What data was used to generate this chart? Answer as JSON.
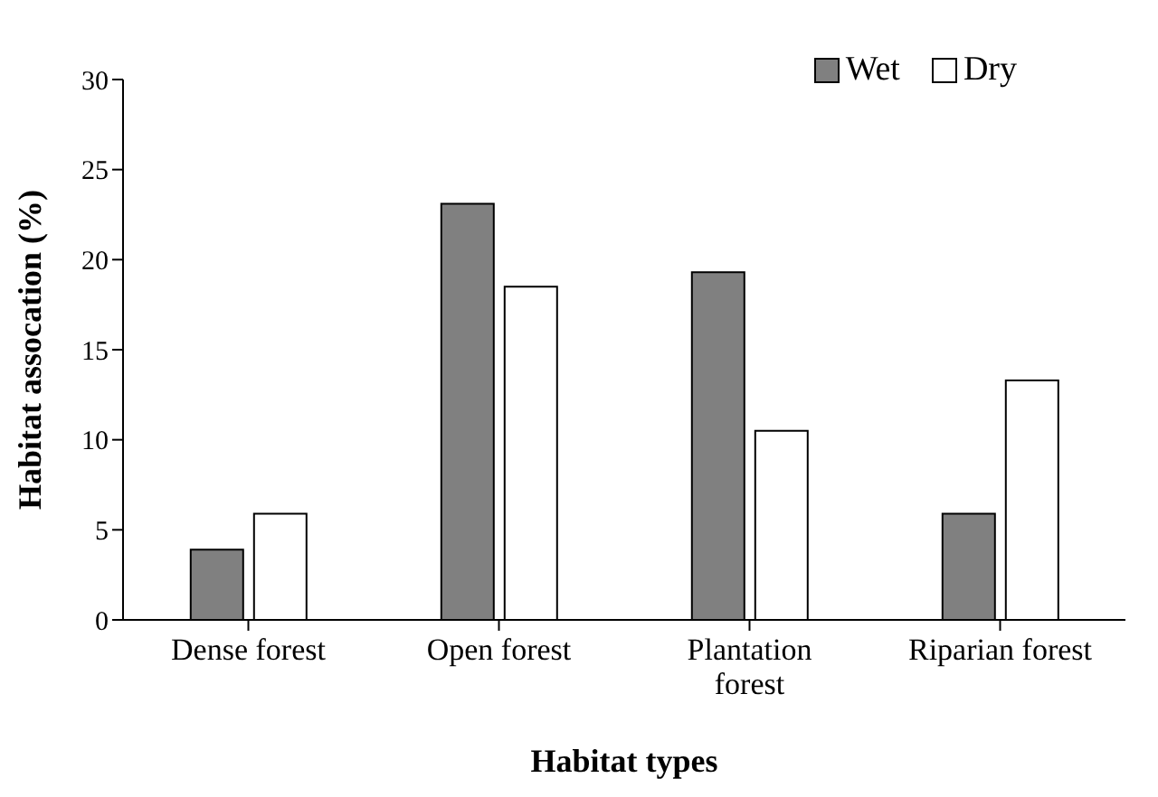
{
  "chart_data": {
    "type": "bar",
    "xlabel": "Habitat types",
    "ylabel": "Habitat assocation (%)",
    "categories": [
      "Dense forest",
      "Open forest",
      "Plantation forest",
      "Riparian forest"
    ],
    "series": [
      {
        "name": "Wet",
        "color": "#808080",
        "values": [
          3.9,
          23.1,
          19.3,
          5.9
        ]
      },
      {
        "name": "Dry",
        "color": "#ffffff",
        "values": [
          5.9,
          18.5,
          10.5,
          13.3
        ]
      }
    ],
    "ylim": [
      0,
      30
    ],
    "yticks": [
      0,
      5,
      10,
      15,
      20,
      25,
      30
    ],
    "grid": false,
    "legend": "top right"
  }
}
